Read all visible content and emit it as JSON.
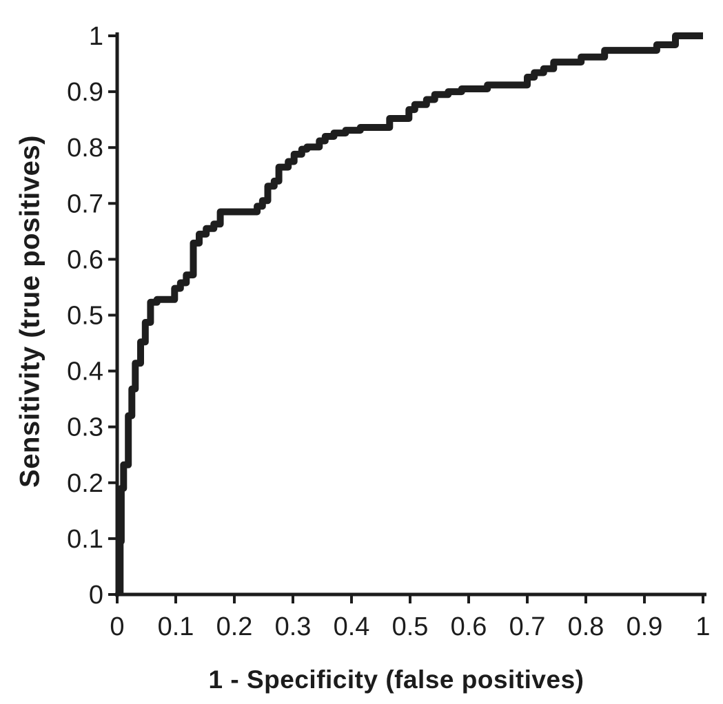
{
  "chart": {
    "background_color": "#ffffff",
    "axis_color": "#1c1c1c",
    "curve_color": "#1e1e1e"
  },
  "chart_data": {
    "type": "line",
    "subtype": "roc-step-curve",
    "title": "",
    "xlabel": "1 - Specificity (false positives)",
    "ylabel": "Sensitivity (true positives)",
    "xlim": [
      0,
      1
    ],
    "ylim": [
      0,
      1
    ],
    "grid": false,
    "legend": null,
    "x_tick_values": [
      0,
      0.1,
      0.2,
      0.3,
      0.4,
      0.5,
      0.6,
      0.7,
      0.8,
      0.9,
      1
    ],
    "x_tick_labels": [
      "0",
      "0.1",
      "0.2",
      "0.3",
      "0.4",
      "0.5",
      "0.6",
      "0.7",
      "0.8",
      "0.9",
      "1"
    ],
    "y_tick_values": [
      0,
      0.1,
      0.2,
      0.3,
      0.4,
      0.5,
      0.6,
      0.7,
      0.8,
      0.9,
      1
    ],
    "y_tick_labels": [
      "0",
      "0.1",
      "0.2",
      "0.3",
      "0.4",
      "0.5",
      "0.6",
      "0.7",
      "0.8",
      "0.9",
      "1"
    ],
    "points": [
      [
        0.005,
        0
      ],
      [
        0.005,
        0.095
      ],
      [
        0.007,
        0.095
      ],
      [
        0.007,
        0.19
      ],
      [
        0.011,
        0.19
      ],
      [
        0.011,
        0.232
      ],
      [
        0.019,
        0.232
      ],
      [
        0.019,
        0.32
      ],
      [
        0.025,
        0.32
      ],
      [
        0.025,
        0.368
      ],
      [
        0.031,
        0.368
      ],
      [
        0.031,
        0.414
      ],
      [
        0.04,
        0.414
      ],
      [
        0.04,
        0.452
      ],
      [
        0.048,
        0.452
      ],
      [
        0.048,
        0.487
      ],
      [
        0.057,
        0.487
      ],
      [
        0.057,
        0.523
      ],
      [
        0.068,
        0.523
      ],
      [
        0.068,
        0.528
      ],
      [
        0.098,
        0.528
      ],
      [
        0.098,
        0.548
      ],
      [
        0.108,
        0.548
      ],
      [
        0.108,
        0.558
      ],
      [
        0.118,
        0.558
      ],
      [
        0.118,
        0.572
      ],
      [
        0.13,
        0.572
      ],
      [
        0.13,
        0.629
      ],
      [
        0.14,
        0.629
      ],
      [
        0.14,
        0.645
      ],
      [
        0.152,
        0.645
      ],
      [
        0.152,
        0.655
      ],
      [
        0.165,
        0.655
      ],
      [
        0.165,
        0.663
      ],
      [
        0.176,
        0.663
      ],
      [
        0.176,
        0.685
      ],
      [
        0.239,
        0.685
      ],
      [
        0.239,
        0.695
      ],
      [
        0.248,
        0.695
      ],
      [
        0.248,
        0.705
      ],
      [
        0.257,
        0.705
      ],
      [
        0.257,
        0.731
      ],
      [
        0.268,
        0.731
      ],
      [
        0.268,
        0.74
      ],
      [
        0.276,
        0.74
      ],
      [
        0.276,
        0.765
      ],
      [
        0.292,
        0.765
      ],
      [
        0.292,
        0.775
      ],
      [
        0.302,
        0.775
      ],
      [
        0.302,
        0.788
      ],
      [
        0.315,
        0.788
      ],
      [
        0.315,
        0.797
      ],
      [
        0.324,
        0.797
      ],
      [
        0.324,
        0.801
      ],
      [
        0.345,
        0.801
      ],
      [
        0.345,
        0.812
      ],
      [
        0.355,
        0.812
      ],
      [
        0.355,
        0.82
      ],
      [
        0.37,
        0.82
      ],
      [
        0.37,
        0.826
      ],
      [
        0.39,
        0.826
      ],
      [
        0.39,
        0.831
      ],
      [
        0.415,
        0.831
      ],
      [
        0.415,
        0.836
      ],
      [
        0.465,
        0.836
      ],
      [
        0.465,
        0.852
      ],
      [
        0.498,
        0.852
      ],
      [
        0.498,
        0.868
      ],
      [
        0.508,
        0.868
      ],
      [
        0.508,
        0.877
      ],
      [
        0.528,
        0.877
      ],
      [
        0.528,
        0.886
      ],
      [
        0.542,
        0.886
      ],
      [
        0.542,
        0.895
      ],
      [
        0.565,
        0.895
      ],
      [
        0.565,
        0.9
      ],
      [
        0.588,
        0.9
      ],
      [
        0.588,
        0.905
      ],
      [
        0.632,
        0.905
      ],
      [
        0.632,
        0.912
      ],
      [
        0.7,
        0.912
      ],
      [
        0.7,
        0.926
      ],
      [
        0.712,
        0.926
      ],
      [
        0.712,
        0.934
      ],
      [
        0.728,
        0.934
      ],
      [
        0.728,
        0.941
      ],
      [
        0.745,
        0.941
      ],
      [
        0.745,
        0.953
      ],
      [
        0.792,
        0.953
      ],
      [
        0.792,
        0.962
      ],
      [
        0.832,
        0.962
      ],
      [
        0.832,
        0.974
      ],
      [
        0.921,
        0.974
      ],
      [
        0.921,
        0.984
      ],
      [
        0.953,
        0.984
      ],
      [
        0.953,
        1
      ],
      [
        1,
        1
      ]
    ]
  }
}
